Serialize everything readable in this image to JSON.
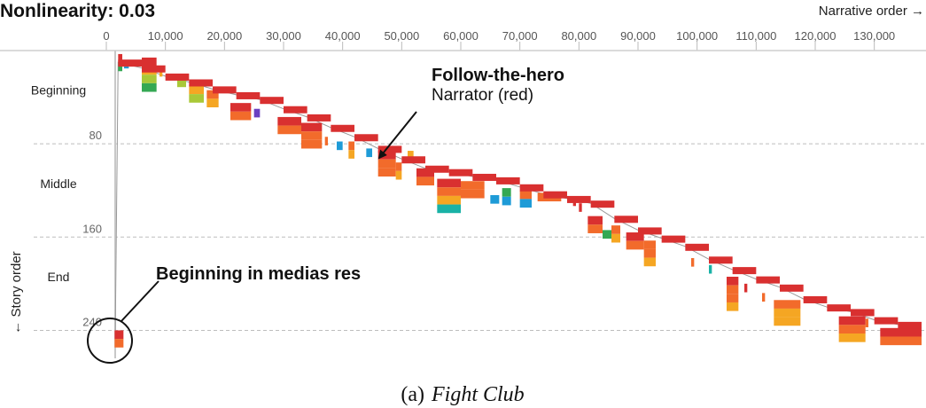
{
  "chart_data": {
    "type": "scatter",
    "title": "Nonlinearity: 0.03",
    "xlabel": "Narrative order →",
    "ylabel": "← Story order",
    "xlim": [
      0,
      138000
    ],
    "ylim": [
      0,
      264
    ],
    "y_inverted": true,
    "x_ticks": [
      "0",
      "10,000",
      "20,000",
      "30,000",
      "40,000",
      "50,000",
      "60,000",
      "70,000",
      "80,000",
      "90,000",
      "100,000",
      "110,000",
      "120,000",
      "130,000"
    ],
    "x_tick_values": [
      0,
      10000,
      20000,
      30000,
      40000,
      50000,
      60000,
      70000,
      80000,
      90000,
      100000,
      110000,
      120000,
      130000
    ],
    "y_ticks": [
      "80",
      "160",
      "240"
    ],
    "y_tick_values": [
      80,
      160,
      240
    ],
    "sections": [
      "Beginning",
      "Middle",
      "End"
    ],
    "section_mid_values": [
      34,
      114,
      194
    ],
    "grid": "horizontal dashed at story-order ticks",
    "narrator_color": "#d93030",
    "character_colors": [
      "#d93030",
      "#f26b2b",
      "#f5a623",
      "#f2c318",
      "#a9c838",
      "#34a853",
      "#1e9bd7",
      "#6a3fc1",
      "#19b2a6"
    ],
    "marker_x": 1500,
    "path": [
      [
        1500,
        250
      ],
      [
        2000,
        10
      ],
      [
        6000,
        15
      ],
      [
        10000,
        22
      ],
      [
        14000,
        27
      ],
      [
        18000,
        33
      ],
      [
        22000,
        38
      ],
      [
        26000,
        42
      ],
      [
        30000,
        50
      ],
      [
        34000,
        57
      ],
      [
        38000,
        66
      ],
      [
        42000,
        74
      ],
      [
        46000,
        84
      ],
      [
        50000,
        93
      ],
      [
        54000,
        101
      ],
      [
        58000,
        104
      ],
      [
        62000,
        108
      ],
      [
        66000,
        111
      ],
      [
        70000,
        117
      ],
      [
        74000,
        123
      ],
      [
        78000,
        127
      ],
      [
        82000,
        131
      ],
      [
        86000,
        144
      ],
      [
        90000,
        154
      ],
      [
        94000,
        161
      ],
      [
        98000,
        168
      ],
      [
        102000,
        179
      ],
      [
        106000,
        188
      ],
      [
        110000,
        196
      ],
      [
        114000,
        203
      ],
      [
        118000,
        213
      ],
      [
        122000,
        220
      ],
      [
        126000,
        224
      ],
      [
        130000,
        231
      ],
      [
        134000,
        235
      ],
      [
        138000,
        238
      ]
    ],
    "blocks": [
      {
        "x": 1400,
        "w": 1500,
        "y": 240,
        "rows": [
          "#d93030",
          "#f26b2b"
        ]
      },
      {
        "x": 2000,
        "w": 700,
        "y": 3,
        "rows": [
          "#d93030",
          "#34a853"
        ]
      },
      {
        "x": 3000,
        "w": 800,
        "y": 8,
        "rows": [
          "#1e9bd7"
        ]
      },
      {
        "x": 6000,
        "w": 2500,
        "y": 6,
        "rows": [
          "#d93030",
          "#f5a623",
          "#a9c838",
          "#34a853"
        ]
      },
      {
        "x": 9000,
        "w": 500,
        "y": 15,
        "rows": [
          "#f5a623"
        ]
      },
      {
        "x": 12000,
        "w": 1500,
        "y": 24,
        "rows": [
          "#a9c838"
        ]
      },
      {
        "x": 14000,
        "w": 2500,
        "y": 30,
        "rows": [
          "#f5a623",
          "#a9c838"
        ]
      },
      {
        "x": 17000,
        "w": 2000,
        "y": 34,
        "rows": [
          "#f26b2b",
          "#f5a623"
        ]
      },
      {
        "x": 21000,
        "w": 3500,
        "y": 45,
        "rows": [
          "#d93030",
          "#f26b2b"
        ]
      },
      {
        "x": 25000,
        "w": 1000,
        "y": 50,
        "rows": [
          "#6a3fc1"
        ]
      },
      {
        "x": 29000,
        "w": 4000,
        "y": 57,
        "rows": [
          "#d93030",
          "#f26b2b"
        ]
      },
      {
        "x": 33000,
        "w": 3500,
        "y": 62,
        "rows": [
          "#d93030",
          "#f26b2b",
          "#f26b2b"
        ]
      },
      {
        "x": 37000,
        "w": 500,
        "y": 74,
        "rows": [
          "#f26b2b"
        ]
      },
      {
        "x": 39000,
        "w": 1000,
        "y": 78,
        "rows": [
          "#1e9bd7"
        ]
      },
      {
        "x": 41000,
        "w": 1000,
        "y": 78,
        "rows": [
          "#f26b2b",
          "#f5a623"
        ]
      },
      {
        "x": 44000,
        "w": 1000,
        "y": 84,
        "rows": [
          "#1e9bd7"
        ]
      },
      {
        "x": 46000,
        "w": 3000,
        "y": 86,
        "rows": [
          "#d93030",
          "#f26b2b",
          "#f26b2b"
        ]
      },
      {
        "x": 49000,
        "w": 1000,
        "y": 96,
        "rows": [
          "#f26b2b",
          "#f5a623"
        ]
      },
      {
        "x": 51000,
        "w": 1000,
        "y": 86,
        "rows": [
          "#f5a623"
        ]
      },
      {
        "x": 52500,
        "w": 3000,
        "y": 101,
        "rows": [
          "#d93030",
          "#f26b2b"
        ]
      },
      {
        "x": 56000,
        "w": 4000,
        "y": 110,
        "rows": [
          "#d93030",
          "#f26b2b",
          "#f5a623",
          "#19b2a6"
        ]
      },
      {
        "x": 60000,
        "w": 4000,
        "y": 112,
        "rows": [
          "#f26b2b",
          "#f26b2b"
        ]
      },
      {
        "x": 65000,
        "w": 1500,
        "y": 124,
        "rows": [
          "#1e9bd7"
        ]
      },
      {
        "x": 67000,
        "w": 1500,
        "y": 118,
        "rows": [
          "#34a853",
          "#1e9bd7"
        ]
      },
      {
        "x": 70000,
        "w": 2000,
        "y": 120,
        "rows": [
          "#f26b2b",
          "#1e9bd7"
        ]
      },
      {
        "x": 73000,
        "w": 4000,
        "y": 122,
        "rows": [
          "#f26b2b"
        ]
      },
      {
        "x": 79000,
        "w": 500,
        "y": 126,
        "rows": [
          "#d93030"
        ]
      },
      {
        "x": 80000,
        "w": 500,
        "y": 131,
        "rows": [
          "#d93030"
        ]
      },
      {
        "x": 81500,
        "w": 2500,
        "y": 142,
        "rows": [
          "#d93030",
          "#f26b2b"
        ]
      },
      {
        "x": 84000,
        "w": 1500,
        "y": 154,
        "rows": [
          "#34a853"
        ]
      },
      {
        "x": 85500,
        "w": 1500,
        "y": 150,
        "rows": [
          "#f26b2b",
          "#f5a623"
        ]
      },
      {
        "x": 88000,
        "w": 3000,
        "y": 156,
        "rows": [
          "#d93030",
          "#f26b2b"
        ]
      },
      {
        "x": 91000,
        "w": 2000,
        "y": 163,
        "rows": [
          "#f26b2b",
          "#f26b2b",
          "#f5a623"
        ]
      },
      {
        "x": 99000,
        "w": 500,
        "y": 178,
        "rows": [
          "#f26b2b"
        ]
      },
      {
        "x": 102000,
        "w": 500,
        "y": 184,
        "rows": [
          "#19b2a6"
        ]
      },
      {
        "x": 105000,
        "w": 2000,
        "y": 194,
        "rows": [
          "#d93030",
          "#f26b2b",
          "#f26b2b",
          "#f5a623"
        ]
      },
      {
        "x": 108000,
        "w": 500,
        "y": 200,
        "rows": [
          "#d93030"
        ]
      },
      {
        "x": 111000,
        "w": 500,
        "y": 208,
        "rows": [
          "#f26b2b"
        ]
      },
      {
        "x": 113000,
        "w": 4500,
        "y": 214,
        "rows": [
          "#f26b2b",
          "#f5a623",
          "#f5a623"
        ]
      },
      {
        "x": 124000,
        "w": 4500,
        "y": 228,
        "rows": [
          "#d93030",
          "#f26b2b",
          "#f5a623"
        ]
      },
      {
        "x": 128500,
        "w": 500,
        "y": 230,
        "rows": [
          "#f26b2b"
        ]
      },
      {
        "x": 131000,
        "w": 7000,
        "y": 238,
        "rows": [
          "#d93030",
          "#f26b2b"
        ]
      }
    ]
  },
  "annotations": {
    "hero_title": "Follow-the-hero",
    "hero_sub": "Narrator (red)",
    "medias_res": "Beginning in medias res"
  },
  "caption": {
    "prefix": "(a)",
    "film": "Fight Club"
  }
}
